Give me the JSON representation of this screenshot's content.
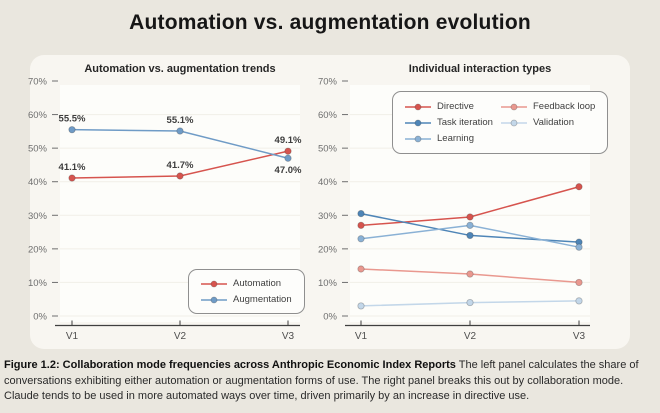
{
  "title": "Automation vs. augmentation evolution",
  "caption": {
    "bold": "Figure 1.2: Collaboration mode frequencies across Anthropic Economic Index Reports",
    "text": "The left panel calculates the share of conversations exhibiting either automation or augmentation forms of use. The right panel breaks this out by collaboration mode. Claude tends to be used in more automated ways over time, driven primarily by an increase in directive use."
  },
  "chart_data": [
    {
      "type": "line",
      "title": "Automation vs. augmentation trends",
      "categories": [
        "V1",
        "V2",
        "V3"
      ],
      "ylim": [
        0,
        70
      ],
      "ytick_step": 10,
      "ytick_suffix": "%",
      "grid": true,
      "legend_position": "bottom-right",
      "series": [
        {
          "name": "Automation",
          "color": "#d6544e",
          "values": [
            41.1,
            41.7,
            49.1
          ],
          "labels": [
            "41.1%",
            "41.7%",
            "49.1%"
          ],
          "label_pos": [
            "above",
            "above",
            "above"
          ]
        },
        {
          "name": "Augmentation",
          "color": "#6f9bc6",
          "values": [
            55.5,
            55.1,
            47.0
          ],
          "labels": [
            "55.5%",
            "55.1%",
            "47.0%"
          ],
          "label_pos": [
            "above",
            "above",
            "below"
          ]
        }
      ]
    },
    {
      "type": "line",
      "title": "Individual interaction types",
      "categories": [
        "V1",
        "V2",
        "V3"
      ],
      "ylim": [
        0,
        70
      ],
      "ytick_step": 10,
      "ytick_suffix": "%",
      "grid": true,
      "legend_position": "top-center",
      "legend_columns": 2,
      "series": [
        {
          "name": "Directive",
          "color": "#d6544e",
          "values": [
            27.0,
            29.5,
            38.5
          ]
        },
        {
          "name": "Task iteration",
          "color": "#4e85b7",
          "values": [
            30.5,
            24.0,
            22.0
          ]
        },
        {
          "name": "Learning",
          "color": "#8ab1d5",
          "values": [
            23.0,
            27.0,
            20.5
          ]
        },
        {
          "name": "Feedback loop",
          "color": "#e9988f",
          "values": [
            14.0,
            12.5,
            10.0
          ]
        },
        {
          "name": "Validation",
          "color": "#c3d7e9",
          "values": [
            3.0,
            4.0,
            4.5
          ]
        }
      ]
    }
  ]
}
